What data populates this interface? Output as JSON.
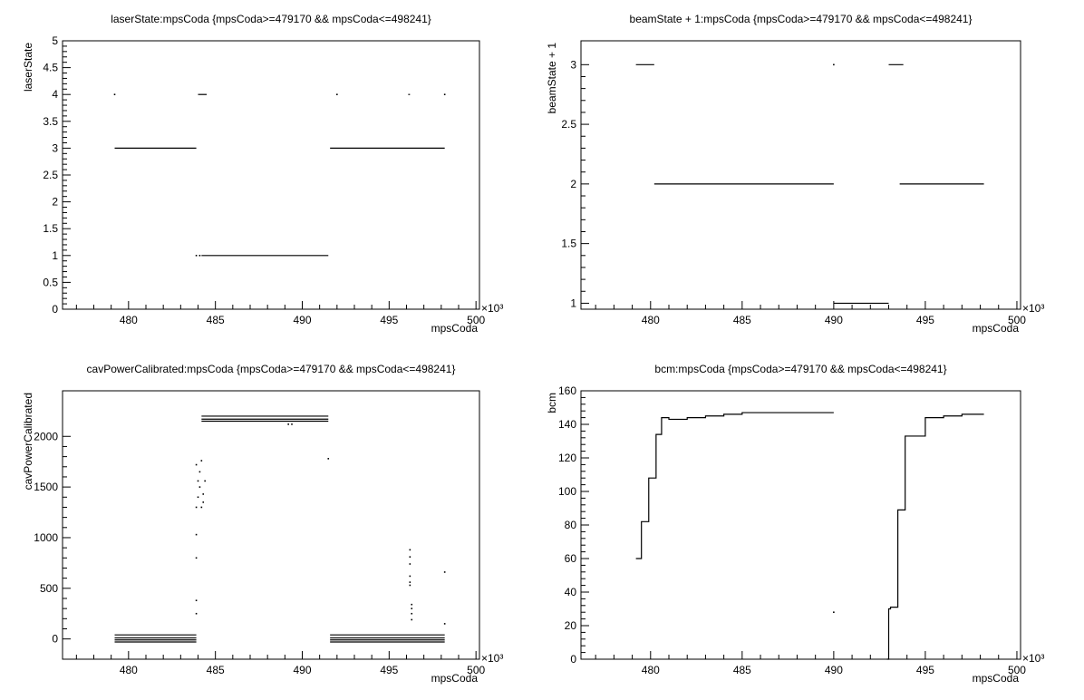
{
  "chart_data": [
    {
      "type": "scatter",
      "title": "laserState:mpsCoda {mpsCoda>=479170 && mpsCoda<=498241}",
      "xlabel": "mpsCoda",
      "ylabel": "laserState",
      "x_exponent_label": "×10³",
      "xlim": [
        476.2,
        500.2
      ],
      "ylim": [
        0,
        5
      ],
      "xticks": [
        480,
        485,
        490,
        495,
        500
      ],
      "xtick_labels": [
        "480",
        "485",
        "490",
        "495",
        "500"
      ],
      "yticks": [
        0,
        0.5,
        1,
        1.5,
        2,
        2.5,
        3,
        3.5,
        4,
        4.5,
        5
      ],
      "ytick_labels": [
        "0",
        "0.5",
        "1",
        "1.5",
        "2",
        "2.5",
        "3",
        "3.5",
        "4",
        "4.5",
        "5"
      ],
      "segments": [
        {
          "x0": 479.2,
          "x1": 483.9,
          "y": 3
        },
        {
          "x0": 484.2,
          "x1": 491.5,
          "y": 1
        },
        {
          "x0": 491.6,
          "x1": 498.2,
          "y": 3
        },
        {
          "x0": 484.0,
          "x1": 484.5,
          "y": 4
        },
        {
          "x0": 496.1,
          "x1": 496.2,
          "y": 4
        }
      ],
      "points": [
        [
          479.2,
          4
        ],
        [
          483.9,
          1
        ],
        [
          484.1,
          1
        ],
        [
          492.0,
          4
        ],
        [
          498.2,
          4
        ]
      ]
    },
    {
      "type": "scatter",
      "title": "beamState + 1:mpsCoda {mpsCoda>=479170 && mpsCoda<=498241}",
      "xlabel": "mpsCoda",
      "ylabel": "beamState + 1",
      "x_exponent_label": "×10³",
      "xlim": [
        476.2,
        500.2
      ],
      "ylim": [
        0.95,
        3.2
      ],
      "xticks": [
        480,
        485,
        490,
        495,
        500
      ],
      "xtick_labels": [
        "480",
        "485",
        "490",
        "495",
        "500"
      ],
      "yticks": [
        1,
        1.5,
        2,
        2.5,
        3
      ],
      "ytick_labels": [
        "1",
        "1.5",
        "2",
        "2.5",
        "3"
      ],
      "segments": [
        {
          "x0": 479.2,
          "x1": 480.2,
          "y": 3
        },
        {
          "x0": 480.2,
          "x1": 490.0,
          "y": 2
        },
        {
          "x0": 490.0,
          "x1": 493.0,
          "y": 1
        },
        {
          "x0": 493.0,
          "x1": 493.8,
          "y": 3
        },
        {
          "x0": 493.6,
          "x1": 498.2,
          "y": 2
        }
      ],
      "points": [
        [
          490.0,
          3
        ]
      ]
    },
    {
      "type": "scatter",
      "title": "cavPowerCalibrated:mpsCoda {mpsCoda>=479170 && mpsCoda<=498241}",
      "xlabel": "mpsCoda",
      "ylabel": "cavPowerCalibrated",
      "x_exponent_label": "×10³",
      "xlim": [
        476.2,
        500.2
      ],
      "ylim": [
        -200,
        2450
      ],
      "xticks": [
        480,
        485,
        490,
        495,
        500
      ],
      "xtick_labels": [
        "480",
        "485",
        "490",
        "495",
        "500"
      ],
      "yticks": [
        0,
        500,
        1000,
        1500,
        2000
      ],
      "ytick_labels": [
        "0",
        "500",
        "1000",
        "1500",
        "2000"
      ],
      "segments": [
        {
          "x0": 479.2,
          "x1": 483.9,
          "y": 40
        },
        {
          "x0": 479.2,
          "x1": 483.9,
          "y": 10
        },
        {
          "x0": 479.2,
          "x1": 483.9,
          "y": -10
        },
        {
          "x0": 479.2,
          "x1": 483.9,
          "y": -30
        },
        {
          "x0": 484.2,
          "x1": 491.5,
          "y": 2200
        },
        {
          "x0": 484.2,
          "x1": 491.5,
          "y": 2170
        },
        {
          "x0": 484.2,
          "x1": 491.5,
          "y": 2150
        },
        {
          "x0": 491.6,
          "x1": 498.2,
          "y": 40
        },
        {
          "x0": 491.6,
          "x1": 498.2,
          "y": 10
        },
        {
          "x0": 491.6,
          "x1": 498.2,
          "y": -10
        },
        {
          "x0": 491.6,
          "x1": 498.2,
          "y": -30
        }
      ],
      "points": [
        [
          483.9,
          250
        ],
        [
          483.9,
          380
        ],
        [
          483.9,
          800
        ],
        [
          483.9,
          1030
        ],
        [
          483.9,
          1300
        ],
        [
          483.9,
          1720
        ],
        [
          484.0,
          1400
        ],
        [
          484.0,
          1560
        ],
        [
          484.1,
          1500
        ],
        [
          484.1,
          1650
        ],
        [
          484.2,
          1760
        ],
        [
          484.2,
          1300
        ],
        [
          484.3,
          1350
        ],
        [
          484.3,
          1430
        ],
        [
          484.4,
          1560
        ],
        [
          489.2,
          2120
        ],
        [
          489.4,
          2120
        ],
        [
          491.5,
          1780
        ],
        [
          496.2,
          880
        ],
        [
          496.2,
          810
        ],
        [
          496.2,
          740
        ],
        [
          496.2,
          620
        ],
        [
          496.2,
          560
        ],
        [
          496.2,
          530
        ],
        [
          496.3,
          340
        ],
        [
          496.3,
          300
        ],
        [
          496.3,
          250
        ],
        [
          496.3,
          190
        ],
        [
          498.2,
          660
        ],
        [
          498.2,
          150
        ]
      ]
    },
    {
      "type": "scatter",
      "title": "bcm:mpsCoda {mpsCoda>=479170 && mpsCoda<=498241}",
      "xlabel": "mpsCoda",
      "ylabel": "bcm",
      "x_exponent_label": "×10³",
      "xlim": [
        476.2,
        500.2
      ],
      "ylim": [
        0,
        160
      ],
      "xticks": [
        480,
        485,
        490,
        495,
        500
      ],
      "xtick_labels": [
        "480",
        "485",
        "490",
        "495",
        "500"
      ],
      "yticks": [
        0,
        20,
        40,
        60,
        80,
        100,
        120,
        140,
        160
      ],
      "ytick_labels": [
        "0",
        "20",
        "40",
        "60",
        "80",
        "100",
        "120",
        "140",
        "160"
      ],
      "series": [
        {
          "x": [
            479.2,
            479.3,
            479.5,
            479.7,
            479.9,
            480.1,
            480.3,
            480.5,
            480.6,
            481.0,
            482.0,
            483.0,
            484.0,
            485.0,
            486.0,
            487.0,
            488.0,
            489.0,
            490.0
          ],
          "y": [
            60,
            60,
            82,
            82,
            108,
            108,
            134,
            134,
            144,
            143,
            144,
            145,
            146,
            147,
            147,
            147,
            147,
            147,
            147
          ]
        },
        {
          "x": [
            492.9,
            493.0,
            493.1,
            493.3,
            493.5,
            493.7,
            493.9,
            494.1,
            495.0,
            496.0,
            497.0,
            498.2
          ],
          "y": [
            0,
            30,
            31,
            31,
            89,
            89,
            133,
            133,
            144,
            145,
            146,
            146
          ]
        }
      ],
      "points": [
        [
          490.0,
          28
        ]
      ]
    }
  ]
}
